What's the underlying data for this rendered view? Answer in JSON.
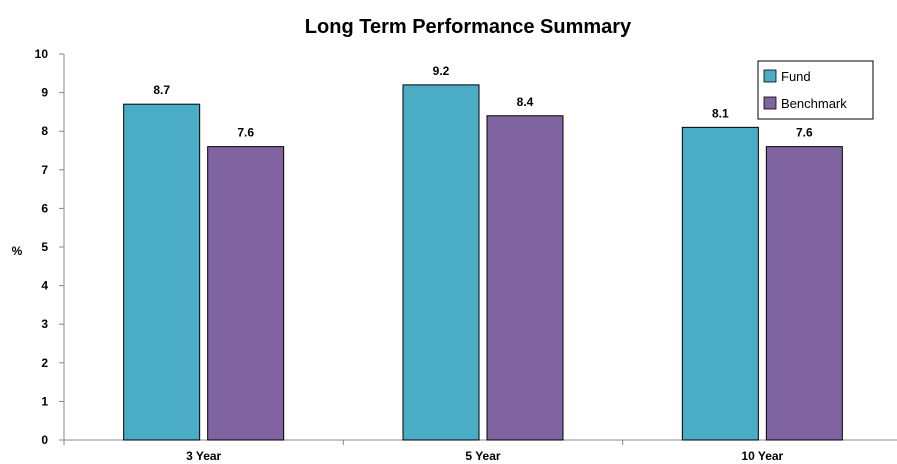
{
  "chart_data": {
    "type": "bar",
    "title": "Long Term Performance Summary",
    "xlabel": "",
    "ylabel": "%",
    "categories": [
      "3 Year",
      "5 Year",
      "10 Year"
    ],
    "series": [
      {
        "name": "Fund",
        "values": [
          8.7,
          9.2,
          8.1
        ],
        "labels": [
          "8.7",
          "9.2",
          "8.1"
        ],
        "color": "#4BACC6"
      },
      {
        "name": "Benchmark",
        "values": [
          7.6,
          8.4,
          7.6
        ],
        "labels": [
          "7.6",
          "8.4",
          "7.6"
        ],
        "color": "#8064A2"
      }
    ],
    "ylim": [
      0,
      10
    ],
    "yticks": [
      "0",
      "1",
      "2",
      "3",
      "4",
      "5",
      "6",
      "7",
      "8",
      "9",
      "10"
    ],
    "grid": false,
    "legend_position": "top-right"
  }
}
